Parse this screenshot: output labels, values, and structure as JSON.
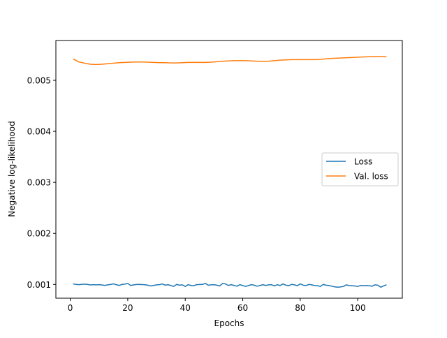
{
  "chart_data": {
    "type": "line",
    "title": "",
    "xlabel": "Epochs",
    "ylabel": "Negative log-likelihood",
    "xlim": [
      -5,
      115.5
    ],
    "ylim": [
      0.00073,
      0.00578
    ],
    "xticks": [
      0,
      20,
      40,
      60,
      80,
      100
    ],
    "xtick_labels": [
      "0",
      "20",
      "40",
      "60",
      "80",
      "100"
    ],
    "yticks": [
      0.001,
      0.002,
      0.003,
      0.004,
      0.005
    ],
    "ytick_labels": [
      "0.001",
      "0.002",
      "0.003",
      "0.004",
      "0.005"
    ],
    "grid": false,
    "legend_position": "center-right",
    "series": [
      {
        "name": "Loss",
        "color": "#1f77b4",
        "x": [
          1,
          2,
          3,
          4,
          5,
          6,
          7,
          8,
          9,
          10,
          11,
          12,
          13,
          14,
          15,
          16,
          17,
          18,
          19,
          20,
          21,
          22,
          23,
          24,
          25,
          26,
          27,
          28,
          29,
          30,
          31,
          32,
          33,
          34,
          35,
          36,
          37,
          38,
          39,
          40,
          41,
          42,
          43,
          44,
          45,
          46,
          47,
          48,
          49,
          50,
          51,
          52,
          53,
          54,
          55,
          56,
          57,
          58,
          59,
          60,
          61,
          62,
          63,
          64,
          65,
          66,
          67,
          68,
          69,
          70,
          71,
          72,
          73,
          74,
          75,
          76,
          77,
          78,
          79,
          80,
          81,
          82,
          83,
          84,
          85,
          86,
          87,
          88,
          89,
          90,
          91,
          92,
          93,
          94,
          95,
          96,
          97,
          98,
          99,
          100,
          101,
          102,
          103,
          104,
          105,
          106,
          107,
          108,
          109,
          110
        ],
        "y": [
          0.00101,
          0.001,
          0.000995,
          0.001,
          0.001005,
          0.001,
          0.00099,
          0.000995,
          0.000992,
          0.000995,
          0.00099,
          0.00098,
          0.000992,
          0.000998,
          0.00101,
          0.000995,
          0.00098,
          0.001,
          0.001005,
          0.00102,
          0.00098,
          0.00099,
          0.000998,
          0.001,
          0.000996,
          0.000994,
          0.000985,
          0.00097,
          0.00098,
          0.000992,
          0.000995,
          0.00101,
          0.000985,
          0.000995,
          0.000978,
          0.00096,
          0.001,
          0.000985,
          0.000992,
          0.00096,
          0.000995,
          0.000978,
          0.000975,
          0.000995,
          0.000998,
          0.001,
          0.00102,
          0.000985,
          0.000992,
          0.000995,
          0.000985,
          0.00097,
          0.00102,
          0.00101,
          0.00098,
          0.000995,
          0.00098,
          0.000965,
          0.000995,
          0.000978,
          0.00096,
          0.000978,
          0.000995,
          0.000985,
          0.000965,
          0.000978,
          0.000995,
          0.00098,
          0.000992,
          0.000995,
          0.00097,
          0.000995,
          0.000978,
          0.00101,
          0.000985,
          0.000975,
          0.001,
          0.000992,
          0.000975,
          0.00101,
          0.000985,
          0.000978,
          0.001,
          0.000992,
          0.000978,
          0.000975,
          0.00096,
          0.001,
          0.000985,
          0.000978,
          0.000965,
          0.000952,
          0.000945,
          0.00095,
          0.00096,
          0.000992,
          0.000978,
          0.000975,
          0.00097,
          0.00096,
          0.00098,
          0.000975,
          0.000978,
          0.000975,
          0.000965,
          0.000992,
          0.000985,
          0.000945,
          0.00097,
          0.000995
        ]
      },
      {
        "name": "Val. loss",
        "color": "#ff7f0e",
        "x": [
          1,
          3,
          5,
          7,
          9,
          11,
          13,
          15,
          17,
          19,
          21,
          23,
          25,
          27,
          29,
          31,
          33,
          35,
          37,
          39,
          41,
          43,
          45,
          47,
          49,
          51,
          53,
          55,
          57,
          59,
          61,
          63,
          65,
          67,
          69,
          71,
          73,
          75,
          77,
          79,
          81,
          83,
          85,
          87,
          89,
          91,
          93,
          95,
          97,
          99,
          101,
          103,
          105,
          107,
          110
        ],
        "y": [
          0.00542,
          0.00536,
          0.005335,
          0.005315,
          0.00531,
          0.005315,
          0.005325,
          0.005335,
          0.005345,
          0.00535,
          0.005355,
          0.00536,
          0.00536,
          0.005355,
          0.00535,
          0.005345,
          0.005345,
          0.00534,
          0.00534,
          0.005345,
          0.00535,
          0.00535,
          0.00535,
          0.00535,
          0.005355,
          0.005365,
          0.005375,
          0.00538,
          0.005385,
          0.005385,
          0.005385,
          0.00538,
          0.005375,
          0.00537,
          0.005375,
          0.005385,
          0.005395,
          0.0054,
          0.005405,
          0.005405,
          0.005405,
          0.005405,
          0.005405,
          0.00541,
          0.00542,
          0.00543,
          0.005435,
          0.00544,
          0.005445,
          0.00545,
          0.005455,
          0.00546,
          0.005465,
          0.005465,
          0.005465
        ]
      }
    ]
  }
}
